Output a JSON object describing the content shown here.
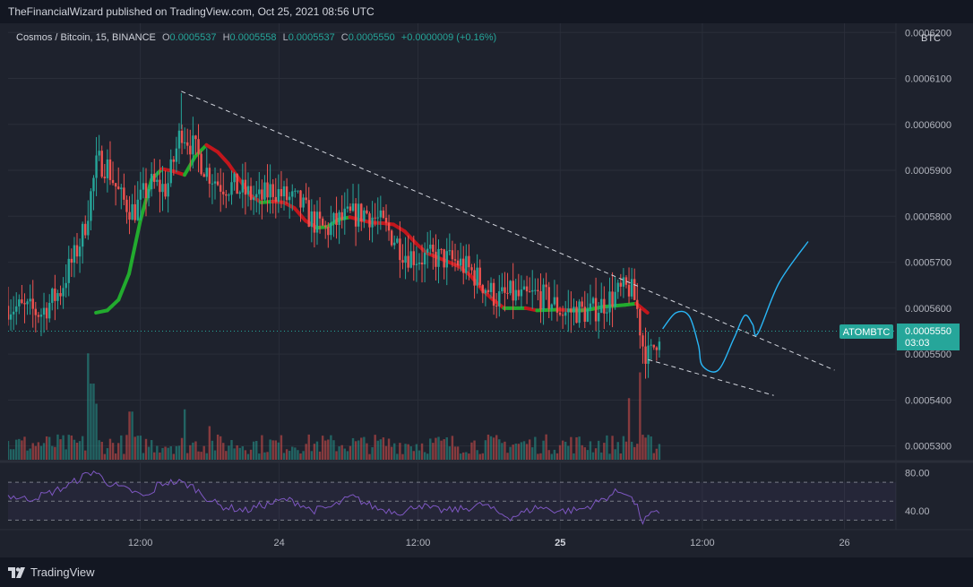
{
  "header": {
    "published_text": "TheFinancialWizard published on TradingView.com, Oct 25, 2021 08:56 UTC"
  },
  "legend": {
    "symbol": "Cosmos / Bitcoin, 15, BINANCE",
    "o_label": "O",
    "o_value": "0.0005537",
    "h_label": "H",
    "h_value": "0.0005558",
    "l_label": "L",
    "l_value": "0.0005537",
    "c_label": "C",
    "c_value": "0.0005550",
    "change": "+0.0000009 (+0.16%)"
  },
  "price_axis": {
    "currency": "BTC",
    "ticks": [
      "0.0006200",
      "0.0006100",
      "0.0006000",
      "0.0005900",
      "0.0005800",
      "0.0005700",
      "0.0005600",
      "0.0005500",
      "0.0005400",
      "0.0005300"
    ],
    "last_price_tag": {
      "symbol": "ATOMBTC",
      "price": "0.0005550",
      "countdown": "03:03"
    }
  },
  "rsi_axis": {
    "ticks": [
      "80.00",
      "40.00"
    ]
  },
  "time_axis": {
    "ticks": [
      "12:00",
      "24",
      "12:00",
      "25",
      "12:00",
      "26"
    ],
    "bold_index": 3
  },
  "footer": {
    "brand": "TradingView"
  },
  "colors": {
    "up": "#26a69a",
    "down": "#ef5350",
    "rsi": "#7e57c2",
    "ma_up": "#22ab2e",
    "ma_down": "#c3161c",
    "projection": "#29b6f6"
  },
  "chart_data": {
    "type": "candlestick",
    "symbol": "ATOMBTC",
    "interval": "15",
    "ylim": [
      0.000527,
      0.000622
    ],
    "rsi_ylim": [
      20,
      90
    ],
    "rsi_levels": [
      70,
      50,
      30
    ],
    "trendlines": [
      {
        "name": "upper",
        "points": [
          {
            "t": 0.262,
            "p": 0.0006072
          },
          {
            "t": 1.25,
            "p": 0.0005465
          }
        ]
      },
      {
        "name": "lower",
        "points": [
          {
            "t": 0.968,
            "p": 0.0005488
          },
          {
            "t": 1.158,
            "p": 0.000541
          }
        ]
      }
    ],
    "projection": [
      {
        "t": 0.99,
        "p": 0.0005555
      },
      {
        "t": 1.01,
        "p": 0.000559
      },
      {
        "t": 1.03,
        "p": 0.0005583
      },
      {
        "t": 1.044,
        "p": 0.000552
      },
      {
        "t": 1.05,
        "p": 0.0005475
      },
      {
        "t": 1.074,
        "p": 0.0005465
      },
      {
        "t": 1.098,
        "p": 0.0005535
      },
      {
        "t": 1.114,
        "p": 0.0005584
      },
      {
        "t": 1.126,
        "p": 0.0005565
      },
      {
        "t": 1.134,
        "p": 0.0005545
      },
      {
        "t": 1.166,
        "p": 0.0005655
      },
      {
        "t": 1.21,
        "p": 0.0005745
      }
    ],
    "ma_points": [
      [
        0.133,
        0.000559
      ],
      [
        0.15,
        0.0005595
      ],
      [
        0.167,
        0.0005618
      ],
      [
        0.183,
        0.0005675
      ],
      [
        0.2,
        0.000579
      ],
      [
        0.217,
        0.000588
      ],
      [
        0.233,
        0.0005903
      ],
      [
        0.25,
        0.0005898
      ],
      [
        0.267,
        0.000589
      ],
      [
        0.283,
        0.000593
      ],
      [
        0.3,
        0.0005955
      ],
      [
        0.317,
        0.000594
      ],
      [
        0.333,
        0.0005915
      ],
      [
        0.35,
        0.000588
      ],
      [
        0.367,
        0.0005845
      ],
      [
        0.383,
        0.000583
      ],
      [
        0.4,
        0.0005832
      ],
      [
        0.417,
        0.000583
      ],
      [
        0.433,
        0.0005818
      ],
      [
        0.45,
        0.000579
      ],
      [
        0.467,
        0.0005775
      ],
      [
        0.483,
        0.0005777
      ],
      [
        0.5,
        0.0005793
      ],
      [
        0.517,
        0.0005798
      ],
      [
        0.533,
        0.0005792
      ],
      [
        0.55,
        0.0005786
      ],
      [
        0.567,
        0.0005785
      ],
      [
        0.583,
        0.0005782
      ],
      [
        0.6,
        0.0005767
      ],
      [
        0.617,
        0.0005741
      ],
      [
        0.633,
        0.000572
      ],
      [
        0.65,
        0.000571
      ],
      [
        0.667,
        0.00057
      ],
      [
        0.683,
        0.000569
      ],
      [
        0.7,
        0.000567
      ],
      [
        0.717,
        0.000564
      ],
      [
        0.733,
        0.0005619
      ],
      [
        0.75,
        0.00056
      ],
      [
        0.767,
        0.00056
      ],
      [
        0.783,
        0.00056
      ],
      [
        0.8,
        0.0005595
      ],
      [
        0.817,
        0.0005596
      ],
      [
        0.833,
        0.0005597
      ],
      [
        0.85,
        0.0005595
      ],
      [
        0.867,
        0.0005595
      ],
      [
        0.883,
        0.0005598
      ],
      [
        0.9,
        0.0005603
      ],
      [
        0.917,
        0.0005605
      ],
      [
        0.933,
        0.0005607
      ],
      [
        0.95,
        0.000561
      ],
      [
        0.967,
        0.000559
      ]
    ],
    "rsi_anchors": [
      [
        0.0,
        56
      ],
      [
        0.03,
        52
      ],
      [
        0.06,
        58
      ],
      [
        0.09,
        66
      ],
      [
        0.11,
        75
      ],
      [
        0.13,
        82
      ],
      [
        0.15,
        70
      ],
      [
        0.17,
        64
      ],
      [
        0.19,
        60
      ],
      [
        0.2,
        56
      ],
      [
        0.215,
        55
      ],
      [
        0.225,
        67
      ],
      [
        0.24,
        70
      ],
      [
        0.26,
        70
      ],
      [
        0.28,
        65
      ],
      [
        0.3,
        54
      ],
      [
        0.32,
        45
      ],
      [
        0.345,
        42
      ],
      [
        0.36,
        40
      ],
      [
        0.38,
        45
      ],
      [
        0.4,
        48
      ],
      [
        0.42,
        52
      ],
      [
        0.44,
        48
      ],
      [
        0.46,
        40
      ],
      [
        0.49,
        44
      ],
      [
        0.52,
        55
      ],
      [
        0.54,
        48
      ],
      [
        0.56,
        42
      ],
      [
        0.58,
        40
      ],
      [
        0.6,
        38
      ],
      [
        0.62,
        47
      ],
      [
        0.64,
        42
      ],
      [
        0.66,
        40
      ],
      [
        0.69,
        42
      ],
      [
        0.72,
        47
      ],
      [
        0.74,
        38
      ],
      [
        0.76,
        33
      ],
      [
        0.78,
        38
      ],
      [
        0.8,
        44
      ],
      [
        0.83,
        40
      ],
      [
        0.85,
        40
      ],
      [
        0.87,
        42
      ],
      [
        0.9,
        52
      ],
      [
        0.92,
        60
      ],
      [
        0.935,
        60
      ],
      [
        0.95,
        46
      ],
      [
        0.96,
        28
      ],
      [
        0.97,
        35
      ],
      [
        0.985,
        38
      ]
    ],
    "price_anchors": [
      [
        0.0,
        0.0005605
      ],
      [
        0.05,
        0.000559
      ],
      [
        0.08,
        0.000564
      ],
      [
        0.09,
        0.000568
      ],
      [
        0.1,
        0.000571
      ],
      [
        0.115,
        0.000577
      ],
      [
        0.135,
        0.000592
      ],
      [
        0.15,
        0.000591
      ],
      [
        0.17,
        0.000584
      ],
      [
        0.19,
        0.000581
      ],
      [
        0.215,
        0.000587
      ],
      [
        0.24,
        0.000586
      ],
      [
        0.262,
        0.000599
      ],
      [
        0.28,
        0.000595
      ],
      [
        0.3,
        0.00059
      ],
      [
        0.32,
        0.000587
      ],
      [
        0.34,
        0.0005865
      ],
      [
        0.36,
        0.000585
      ],
      [
        0.38,
        0.0005835
      ],
      [
        0.4,
        0.000586
      ],
      [
        0.42,
        0.000584
      ],
      [
        0.44,
        0.000583
      ],
      [
        0.46,
        0.000579
      ],
      [
        0.48,
        0.000577
      ],
      [
        0.5,
        0.000579
      ],
      [
        0.52,
        0.00058
      ],
      [
        0.54,
        0.000581
      ],
      [
        0.56,
        0.000579
      ],
      [
        0.58,
        0.000576
      ],
      [
        0.6,
        0.000572
      ],
      [
        0.62,
        0.000571
      ],
      [
        0.65,
        0.000571
      ],
      [
        0.68,
        0.00057
      ],
      [
        0.7,
        0.000568
      ],
      [
        0.72,
        0.000565
      ],
      [
        0.74,
        0.000562
      ],
      [
        0.76,
        0.000563
      ],
      [
        0.78,
        0.000562
      ],
      [
        0.8,
        0.000563
      ],
      [
        0.82,
        0.0005615
      ],
      [
        0.84,
        0.000559
      ],
      [
        0.86,
        0.0005595
      ],
      [
        0.88,
        0.000559
      ],
      [
        0.9,
        0.000561
      ],
      [
        0.92,
        0.000563
      ],
      [
        0.94,
        0.0005645
      ],
      [
        0.95,
        0.000561
      ],
      [
        0.96,
        0.000552
      ],
      [
        0.97,
        0.000549
      ],
      [
        0.985,
        0.000555
      ]
    ],
    "volume_note": "volume histogram, relative heights",
    "volume_spikes": [
      [
        0.12,
        0.95
      ],
      [
        0.127,
        0.68
      ],
      [
        0.134,
        0.5
      ],
      [
        0.186,
        0.43
      ],
      [
        0.268,
        0.45
      ],
      [
        0.305,
        0.3
      ],
      [
        0.94,
        0.55
      ],
      [
        0.955,
        0.78
      ]
    ]
  }
}
